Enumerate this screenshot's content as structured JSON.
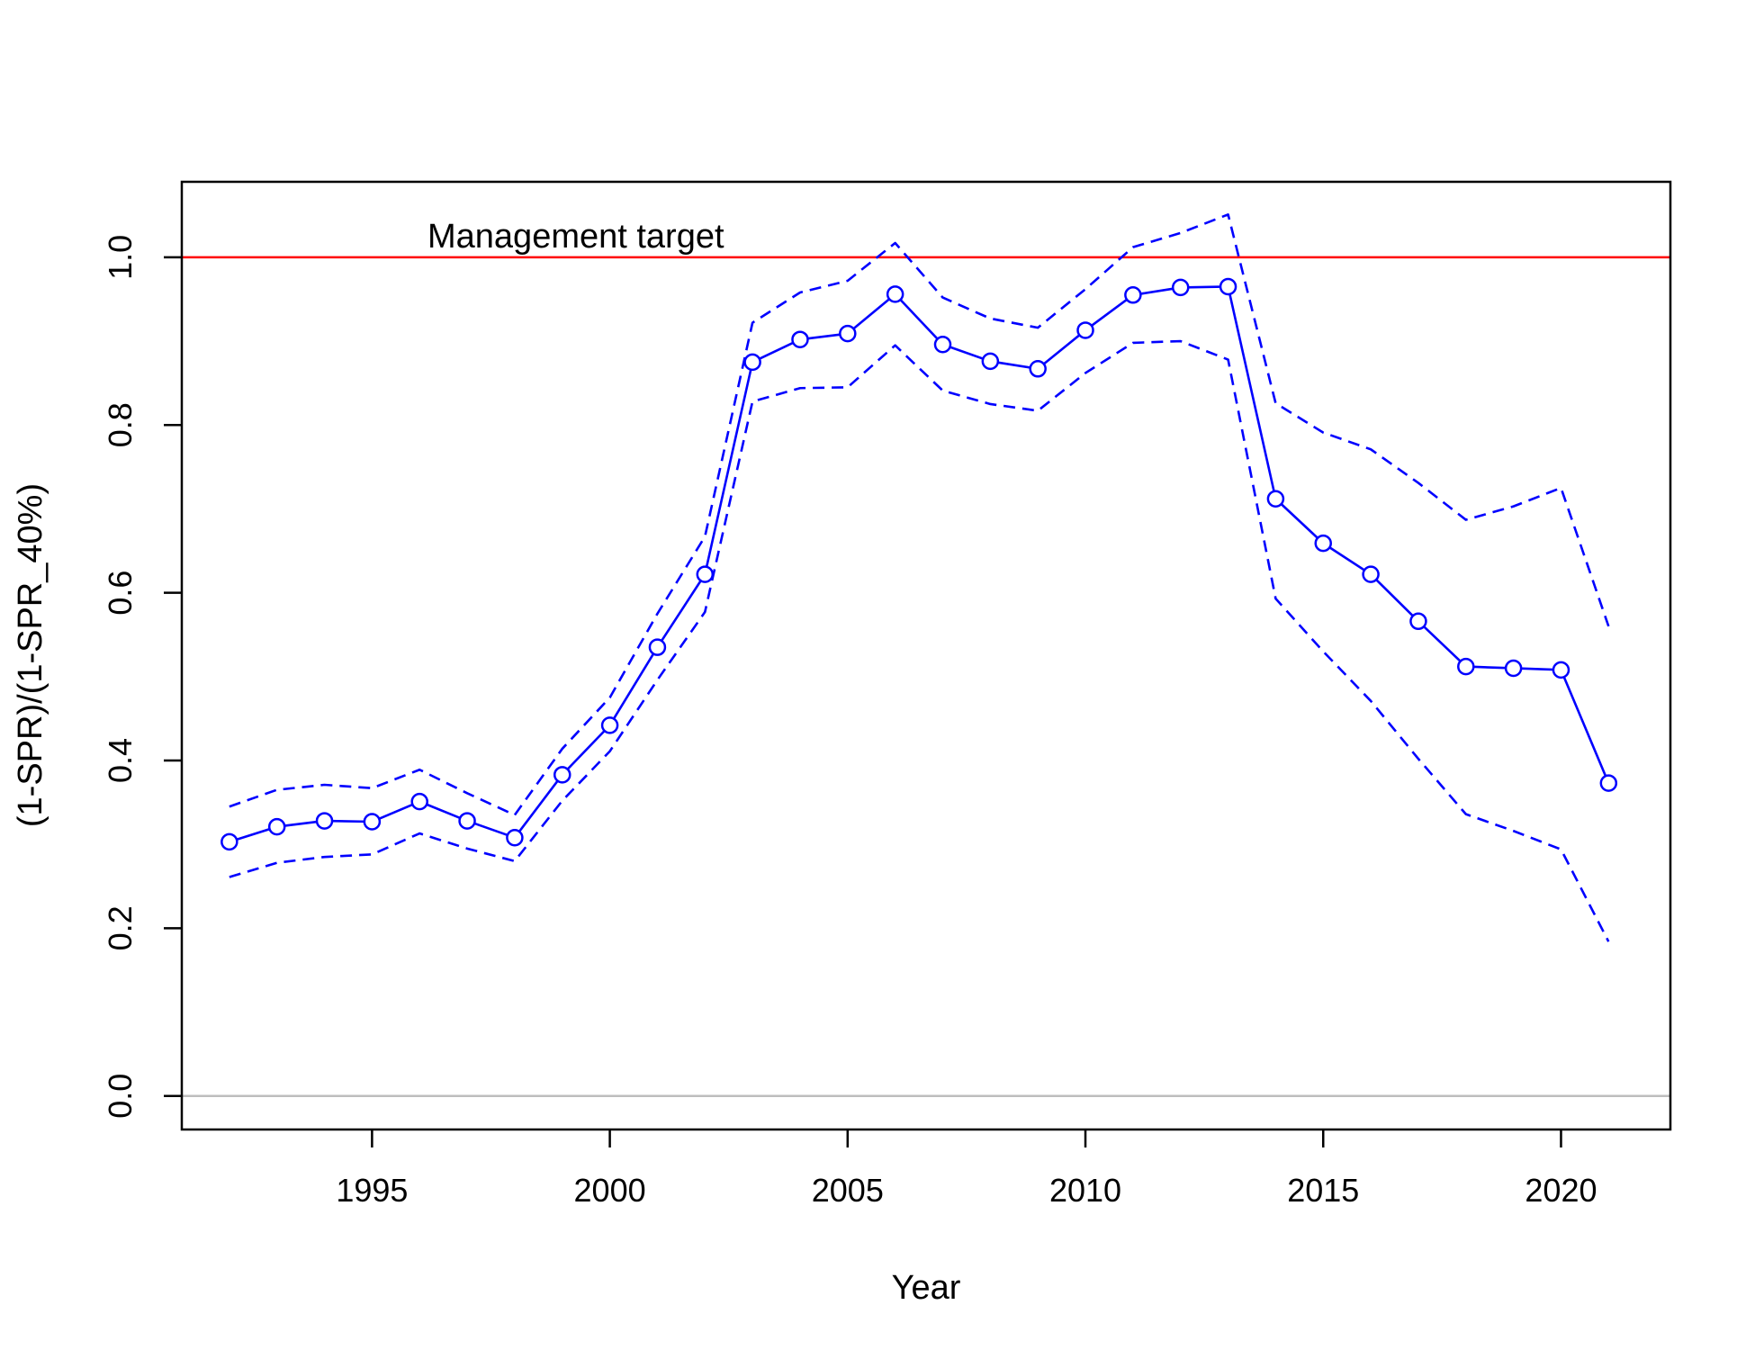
{
  "chart_data": {
    "type": "line",
    "xlabel": "Year",
    "ylabel": "(1-SPR)/(1-SPR_40%)",
    "xlim": [
      1991,
      2022.3
    ],
    "ylim": [
      -0.04,
      1.09
    ],
    "x_ticks": [
      1995,
      2000,
      2005,
      2010,
      2015,
      2020
    ],
    "y_ticks": [
      0.0,
      0.2,
      0.4,
      0.6,
      0.8,
      1.0
    ],
    "y_tick_labels": [
      "0.0",
      "0.2",
      "0.4",
      "0.6",
      "0.8",
      "1.0"
    ],
    "grid": false,
    "reference_lines": [
      {
        "y": 1.0,
        "color": "#ff0000",
        "label": "Management target"
      },
      {
        "y": 0.0,
        "color": "#bebebe"
      }
    ],
    "x": [
      1992,
      1993,
      1994,
      1995,
      1996,
      1997,
      1998,
      1999,
      2000,
      2001,
      2002,
      2003,
      2004,
      2005,
      2006,
      2007,
      2008,
      2009,
      2010,
      2011,
      2012,
      2013,
      2014,
      2015,
      2016,
      2017,
      2018,
      2019,
      2020,
      2021
    ],
    "series": [
      {
        "role": "estimate",
        "color": "#0000ff",
        "line": "solid",
        "markers": "open-circle",
        "values": [
          0.303,
          0.321,
          0.328,
          0.327,
          0.351,
          0.328,
          0.308,
          0.383,
          0.442,
          0.535,
          0.622,
          0.875,
          0.902,
          0.909,
          0.956,
          0.896,
          0.876,
          0.867,
          0.913,
          0.955,
          0.964,
          0.965,
          0.712,
          0.659,
          0.622,
          0.566,
          0.512,
          0.51,
          0.508,
          0.373
        ]
      },
      {
        "role": "upper-interval",
        "color": "#0000ff",
        "line": "dashed",
        "values": [
          0.345,
          0.365,
          0.371,
          0.367,
          0.389,
          0.361,
          0.335,
          0.414,
          0.475,
          0.575,
          0.667,
          0.922,
          0.958,
          0.972,
          1.017,
          0.952,
          0.927,
          0.916,
          0.962,
          1.012,
          1.029,
          1.051,
          0.826,
          0.791,
          0.771,
          0.731,
          0.687,
          0.703,
          0.725,
          0.56
        ]
      },
      {
        "role": "lower-interval",
        "color": "#0000ff",
        "line": "dashed",
        "values": [
          0.261,
          0.278,
          0.285,
          0.288,
          0.313,
          0.295,
          0.28,
          0.352,
          0.411,
          0.496,
          0.577,
          0.828,
          0.844,
          0.845,
          0.895,
          0.841,
          0.825,
          0.817,
          0.862,
          0.898,
          0.9,
          0.878,
          0.593,
          0.53,
          0.471,
          0.402,
          0.336,
          0.316,
          0.294,
          0.184
        ]
      }
    ]
  }
}
